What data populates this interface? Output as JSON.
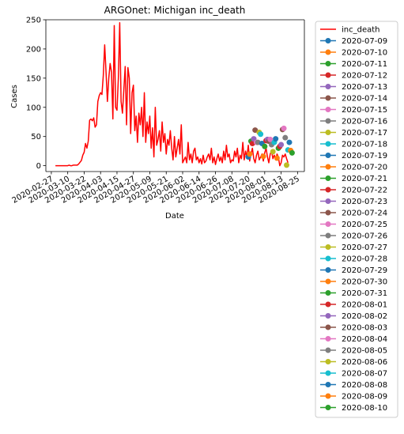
{
  "chart_data": {
    "type": "line",
    "title": "ARGOnet: Michigan inc_death",
    "xlabel": "Date",
    "ylabel": "Cases",
    "ylim": [
      -10,
      250
    ],
    "xlim": [
      "2020-02-23",
      "2020-08-30"
    ],
    "grid": false,
    "legend_position": "outside-right",
    "y_ticks": [
      0,
      50,
      100,
      150,
      200,
      250
    ],
    "x_ticks": [
      "2020-02-27",
      "2020-03-10",
      "2020-03-22",
      "2020-04-03",
      "2020-04-15",
      "2020-04-27",
      "2020-05-09",
      "2020-05-21",
      "2020-06-02",
      "2020-06-14",
      "2020-06-26",
      "2020-07-08",
      "2020-07-20",
      "2020-08-01",
      "2020-08-13",
      "2020-08-25"
    ],
    "line_series": {
      "name": "inc_death",
      "color": "#ff0000",
      "start_date": "2020-03-01",
      "values": [
        0,
        0,
        0,
        0,
        0,
        0,
        0,
        0,
        0,
        0,
        1,
        0,
        0,
        1,
        1,
        1,
        1,
        3,
        6,
        9,
        18,
        23,
        38,
        30,
        42,
        78,
        80,
        77,
        82,
        66,
        70,
        110,
        120,
        125,
        122,
        155,
        207,
        160,
        110,
        150,
        175,
        160,
        80,
        240,
        100,
        95,
        150,
        245,
        110,
        90,
        130,
        170,
        70,
        168,
        150,
        55,
        125,
        138,
        60,
        85,
        40,
        90,
        70,
        100,
        50,
        125,
        40,
        75,
        55,
        85,
        30,
        65,
        15,
        100,
        35,
        45,
        60,
        25,
        75,
        40,
        55,
        20,
        45,
        35,
        60,
        30,
        10,
        50,
        15,
        30,
        45,
        20,
        70,
        5,
        10,
        15,
        5,
        40,
        10,
        20,
        5,
        25,
        30,
        10,
        15,
        5,
        12,
        3,
        18,
        5,
        8,
        15,
        20,
        10,
        30,
        5,
        15,
        2,
        12,
        20,
        8,
        15,
        5,
        25,
        10,
        35,
        15,
        20,
        5,
        10,
        8,
        25,
        15,
        30,
        5,
        18,
        12,
        40,
        10,
        25,
        15,
        35,
        8,
        20,
        30,
        12,
        5,
        18,
        25,
        10,
        15,
        20,
        8,
        22,
        30,
        15,
        5,
        20,
        25,
        12,
        18,
        10,
        20,
        15,
        0,
        5,
        18,
        15,
        20,
        12,
        5
      ]
    },
    "forecast_series": [
      {
        "name": "2020-07-09",
        "color": "#1f77b4",
        "points": [
          [
            "2020-07-20",
            15
          ]
        ]
      },
      {
        "name": "2020-07-10",
        "color": "#ff7f0e",
        "points": [
          [
            "2020-07-21",
            20
          ]
        ]
      },
      {
        "name": "2020-07-11",
        "color": "#2ca02c",
        "points": [
          [
            "2020-07-22",
            42
          ]
        ]
      },
      {
        "name": "2020-07-12",
        "color": "#d62728",
        "points": [
          [
            "2020-07-23",
            38
          ]
        ]
      },
      {
        "name": "2020-07-13",
        "color": "#9467bd",
        "points": [
          [
            "2020-07-24",
            46
          ]
        ]
      },
      {
        "name": "2020-07-14",
        "color": "#8c564b",
        "points": [
          [
            "2020-07-25",
            61
          ]
        ]
      },
      {
        "name": "2020-07-15",
        "color": "#e377c2",
        "points": [
          [
            "2020-07-26",
            40
          ]
        ]
      },
      {
        "name": "2020-07-16",
        "color": "#7f7f7f",
        "points": [
          [
            "2020-07-27",
            40
          ]
        ]
      },
      {
        "name": "2020-07-17",
        "color": "#bcbd22",
        "points": [
          [
            "2020-07-28",
            57
          ]
        ]
      },
      {
        "name": "2020-07-18",
        "color": "#17becf",
        "points": [
          [
            "2020-07-29",
            54
          ]
        ]
      },
      {
        "name": "2020-07-19",
        "color": "#1f77b4",
        "points": [
          [
            "2020-07-30",
            38
          ]
        ]
      },
      {
        "name": "2020-07-20",
        "color": "#ff7f0e",
        "points": [
          [
            "2020-07-31",
            16
          ]
        ]
      },
      {
        "name": "2020-07-21",
        "color": "#2ca02c",
        "points": [
          [
            "2020-08-01",
            33
          ]
        ]
      },
      {
        "name": "2020-07-22",
        "color": "#d62728",
        "points": [
          [
            "2020-08-02",
            43
          ]
        ]
      },
      {
        "name": "2020-07-23",
        "color": "#9467bd",
        "points": [
          [
            "2020-08-03",
            45
          ]
        ]
      },
      {
        "name": "2020-07-24",
        "color": "#8c564b",
        "points": [
          [
            "2020-08-04",
            42
          ]
        ]
      },
      {
        "name": "2020-07-25",
        "color": "#e377c2",
        "points": [
          [
            "2020-08-05",
            45
          ]
        ]
      },
      {
        "name": "2020-07-26",
        "color": "#7f7f7f",
        "points": [
          [
            "2020-08-06",
            36
          ]
        ]
      },
      {
        "name": "2020-07-27",
        "color": "#bcbd22",
        "points": [
          [
            "2020-08-07",
            24
          ]
        ]
      },
      {
        "name": "2020-07-28",
        "color": "#17becf",
        "points": [
          [
            "2020-08-08",
            40
          ]
        ]
      },
      {
        "name": "2020-07-29",
        "color": "#1f77b4",
        "points": [
          [
            "2020-08-09",
            46
          ]
        ]
      },
      {
        "name": "2020-07-30",
        "color": "#ff7f0e",
        "points": [
          [
            "2020-08-10",
            13
          ]
        ]
      },
      {
        "name": "2020-07-31",
        "color": "#2ca02c",
        "points": [
          [
            "2020-08-11",
            30
          ]
        ]
      },
      {
        "name": "2020-08-01",
        "color": "#d62728",
        "points": [
          [
            "2020-08-12",
            33
          ]
        ]
      },
      {
        "name": "2020-08-02",
        "color": "#9467bd",
        "points": [
          [
            "2020-08-13",
            36
          ]
        ]
      },
      {
        "name": "2020-08-03",
        "color": "#8c564b",
        "points": [
          [
            "2020-08-14",
            62
          ]
        ]
      },
      {
        "name": "2020-08-04",
        "color": "#e377c2",
        "points": [
          [
            "2020-08-15",
            64
          ]
        ]
      },
      {
        "name": "2020-08-05",
        "color": "#7f7f7f",
        "points": [
          [
            "2020-08-16",
            48
          ]
        ]
      },
      {
        "name": "2020-08-06",
        "color": "#bcbd22",
        "points": [
          [
            "2020-08-17",
            1
          ]
        ]
      },
      {
        "name": "2020-08-07",
        "color": "#17becf",
        "points": [
          [
            "2020-08-18",
            27
          ]
        ]
      },
      {
        "name": "2020-08-08",
        "color": "#1f77b4",
        "points": [
          [
            "2020-08-19",
            40
          ]
        ]
      },
      {
        "name": "2020-08-09",
        "color": "#ff7f0e",
        "points": [
          [
            "2020-08-20",
            26
          ]
        ]
      },
      {
        "name": "2020-08-10",
        "color": "#2ca02c",
        "points": [
          [
            "2020-08-21",
            22
          ]
        ]
      }
    ]
  }
}
